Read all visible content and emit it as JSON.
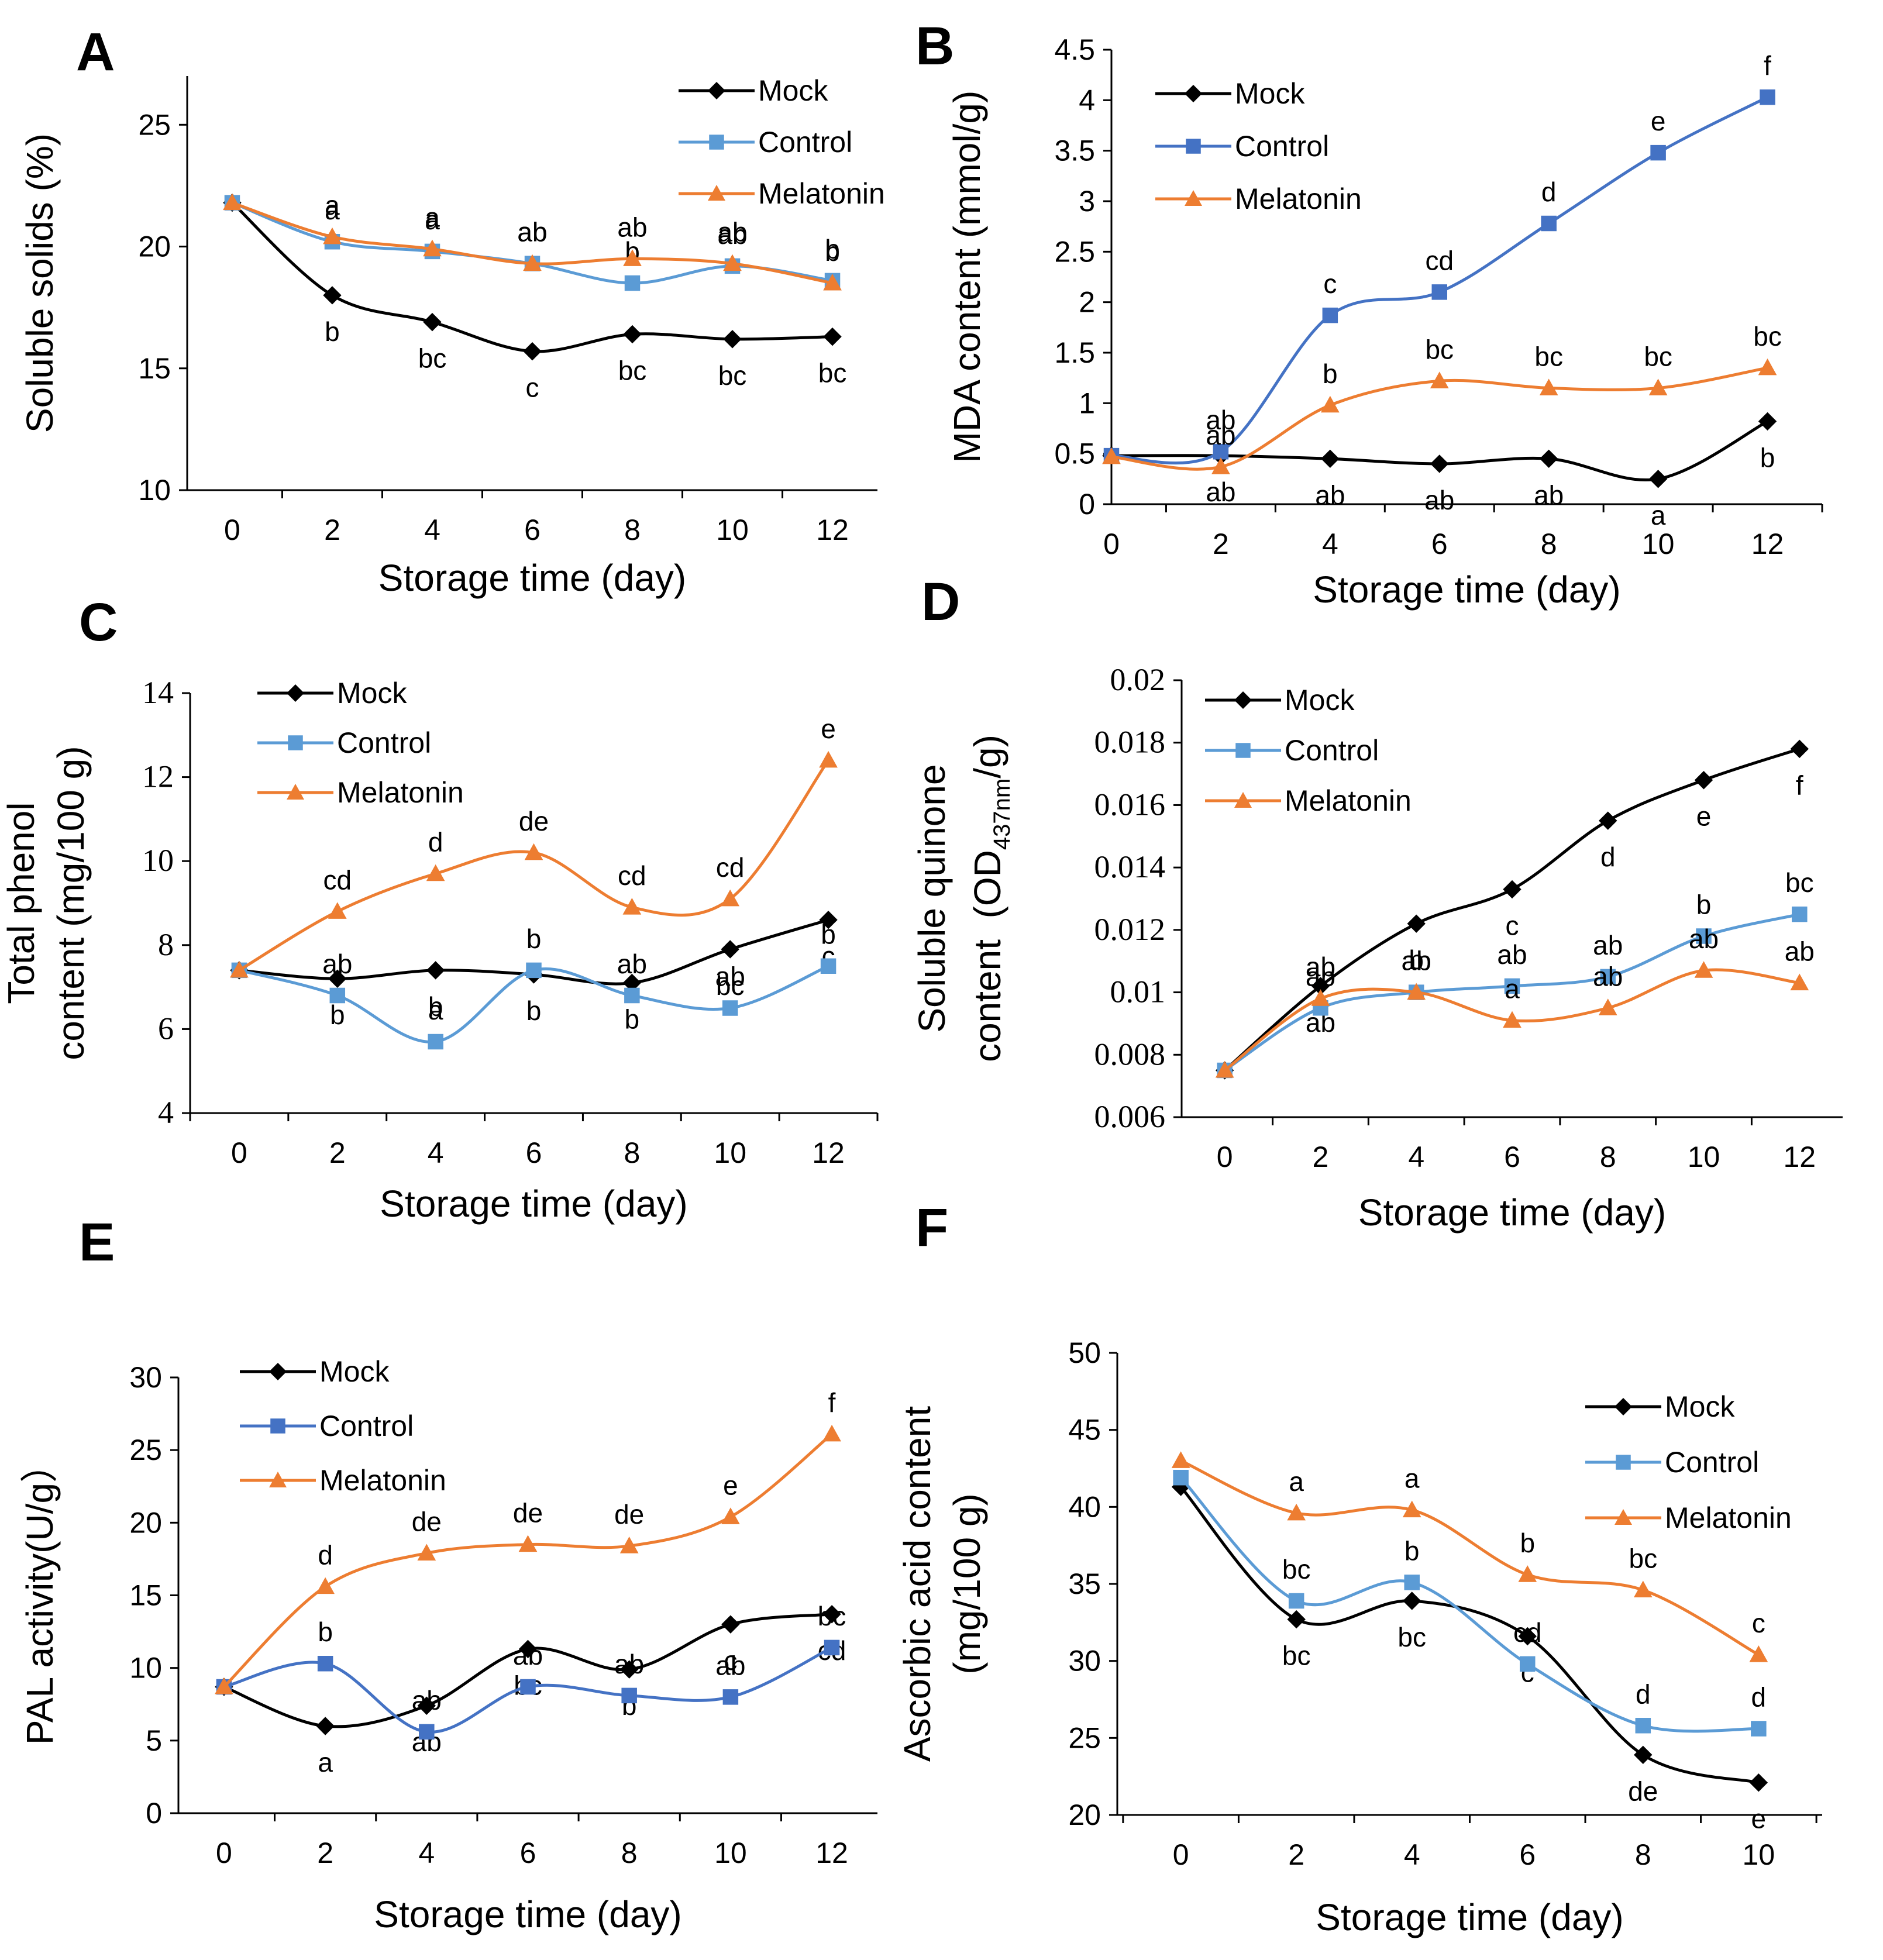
{
  "colors": {
    "mock": "#000000",
    "control_light": "#5b9bd5",
    "control_dark": "#4472c4",
    "melatonin": "#ed7d31"
  },
  "chart_data": [
    {
      "panel": "A",
      "type": "line",
      "title": "",
      "xlabel": "Storage time (day)",
      "ylabel": "Soluble solids (%)",
      "x": [
        0,
        2,
        4,
        6,
        8,
        10,
        12
      ],
      "x_tick_labels": [
        "0",
        "2",
        "4",
        "6",
        "8",
        "10",
        "12"
      ],
      "ylim": [
        10,
        27
      ],
      "y_ticks": [
        10,
        15,
        20,
        25
      ],
      "y_tick_labels": [
        "10",
        "15",
        "20",
        "25"
      ],
      "legend": [
        "Mock",
        "Control",
        "Melatonin"
      ],
      "series": [
        {
          "name": "Mock",
          "color_key": "mock",
          "marker": "diamond",
          "values": [
            21.8,
            18.0,
            16.9,
            15.7,
            16.4,
            16.2,
            16.3
          ],
          "labels": [
            "",
            "b",
            "bc",
            "c",
            "bc",
            "bc",
            "bc"
          ]
        },
        {
          "name": "Control",
          "color_key": "control_light",
          "marker": "square",
          "values": [
            21.8,
            20.2,
            19.8,
            19.3,
            18.5,
            19.2,
            18.6
          ],
          "labels": [
            "",
            "a",
            "a",
            "ab",
            "b",
            "ab",
            "b"
          ]
        },
        {
          "name": "Melatonin",
          "color_key": "melatonin",
          "marker": "triangle",
          "values": [
            21.8,
            20.4,
            19.9,
            19.3,
            19.5,
            19.3,
            18.5
          ],
          "labels": [
            "",
            "a",
            "a",
            "ab",
            "ab",
            "ab",
            "b"
          ]
        }
      ]
    },
    {
      "panel": "B",
      "type": "line",
      "title": "",
      "xlabel": "Storage time (day)",
      "ylabel": "MDA content (mmol/g)",
      "x": [
        0,
        2,
        4,
        6,
        8,
        10,
        12
      ],
      "x_tick_labels": [
        "0",
        "2",
        "4",
        "6",
        "8",
        "10",
        "12"
      ],
      "ylim": [
        0,
        4.5
      ],
      "y_ticks": [
        0,
        0.5,
        1,
        1.5,
        2,
        2.5,
        3,
        3.5,
        4,
        4.5
      ],
      "y_tick_labels": [
        "0",
        "0.5",
        "1",
        "1.5",
        "2",
        "2.5",
        "3",
        "3.5",
        "4",
        "4.5"
      ],
      "legend": [
        "Mock",
        "Control",
        "Melatonin"
      ],
      "series": [
        {
          "name": "Mock",
          "color_key": "mock",
          "marker": "diamond",
          "values": [
            0.48,
            0.48,
            0.45,
            0.4,
            0.45,
            0.25,
            0.82
          ],
          "labels": [
            "",
            "ab",
            "ab",
            "ab",
            "ab",
            "a",
            "b"
          ]
        },
        {
          "name": "Control",
          "color_key": "control_dark",
          "marker": "square",
          "values": [
            0.48,
            0.52,
            1.87,
            2.1,
            2.78,
            3.48,
            4.03
          ],
          "labels": [
            "",
            "ab",
            "c",
            "cd",
            "d",
            "e",
            "f"
          ]
        },
        {
          "name": "Melatonin",
          "color_key": "melatonin",
          "marker": "triangle",
          "values": [
            0.47,
            0.37,
            0.98,
            1.22,
            1.15,
            1.15,
            1.35
          ],
          "labels": [
            "",
            "ab",
            "b",
            "bc",
            "bc",
            "bc",
            "bc"
          ]
        }
      ]
    },
    {
      "panel": "C",
      "type": "line",
      "title": "",
      "xlabel": "Storage time (day)",
      "ylabel": "Total phenol content (mg/100 g)",
      "ylabel_lines": [
        "Total phenol",
        "content (mg/100 g)"
      ],
      "x": [
        0,
        2,
        4,
        6,
        8,
        10,
        12
      ],
      "x_tick_labels": [
        "0",
        "2",
        "4",
        "6",
        "8",
        "10",
        "12"
      ],
      "ylim": [
        4,
        14
      ],
      "y_ticks": [
        4,
        6,
        8,
        10,
        12,
        14
      ],
      "y_tick_labels": [
        "4",
        "6",
        "8",
        "10",
        "12",
        "14"
      ],
      "legend": [
        "Mock",
        "Control",
        "Melatonin"
      ],
      "series": [
        {
          "name": "Mock",
          "color_key": "mock",
          "marker": "diamond",
          "values": [
            7.4,
            7.2,
            7.4,
            7.3,
            7.1,
            7.9,
            8.6
          ],
          "labels": [
            "",
            "b",
            "b",
            "b",
            "b",
            "bc",
            "c"
          ]
        },
        {
          "name": "Control",
          "color_key": "control_light",
          "marker": "square",
          "values": [
            7.4,
            6.8,
            5.7,
            7.4,
            6.8,
            6.5,
            7.5
          ],
          "labels": [
            "",
            "ab",
            "a",
            "b",
            "ab",
            "ab",
            "b"
          ]
        },
        {
          "name": "Melatonin",
          "color_key": "melatonin",
          "marker": "triangle",
          "values": [
            7.4,
            8.8,
            9.7,
            10.2,
            8.9,
            9.1,
            12.4
          ],
          "labels": [
            "",
            "cd",
            "d",
            "de",
            "cd",
            "cd",
            "e"
          ]
        }
      ]
    },
    {
      "panel": "D",
      "type": "line",
      "title": "",
      "xlabel": "Storage time (day)",
      "ylabel": "Soluble quinone content (OD437nm/g)",
      "ylabel_line1": "Soluble quinone",
      "ylabel_line2_prefix": "content  (OD",
      "ylabel_line2_sub": "437nm",
      "ylabel_line2_suffix": "/g)",
      "x": [
        0,
        2,
        4,
        6,
        8,
        10,
        12
      ],
      "x_tick_labels": [
        "0",
        "2",
        "4",
        "6",
        "8",
        "10",
        "12"
      ],
      "ylim": [
        0.006,
        0.02
      ],
      "y_ticks": [
        0.006,
        0.008,
        0.01,
        0.012,
        0.014,
        0.016,
        0.018,
        0.02
      ],
      "y_tick_labels": [
        "0.006",
        "0.008",
        "0.01",
        "0.012",
        "0.014",
        "0.016",
        "0.018",
        "0.02"
      ],
      "legend": [
        "Mock",
        "Control",
        "Melatonin"
      ],
      "series": [
        {
          "name": "Mock",
          "color_key": "mock",
          "marker": "diamond",
          "values": [
            0.0075,
            0.0102,
            0.0122,
            0.0133,
            0.0155,
            0.0168,
            0.0178
          ],
          "labels": [
            "",
            "ab",
            "b",
            "c",
            "d",
            "e",
            "f"
          ]
        },
        {
          "name": "Control",
          "color_key": "control_light",
          "marker": "square",
          "values": [
            0.0075,
            0.0095,
            0.01,
            0.0102,
            0.0105,
            0.0118,
            0.0125
          ],
          "labels": [
            "",
            "ab",
            "ab",
            "ab",
            "ab",
            "b",
            "bc"
          ]
        },
        {
          "name": "Melatonin",
          "color_key": "melatonin",
          "marker": "triangle",
          "values": [
            0.0075,
            0.0098,
            0.01,
            0.0091,
            0.0095,
            0.0107,
            0.0103
          ],
          "labels": [
            "",
            "ab",
            "ab",
            "a",
            "ab",
            "ab",
            "ab"
          ]
        }
      ]
    },
    {
      "panel": "E",
      "type": "line",
      "title": "",
      "xlabel": "Storage time (day)",
      "ylabel": "PAL activity(U/g）",
      "x": [
        0,
        2,
        4,
        6,
        8,
        10,
        12
      ],
      "x_tick_labels": [
        "0",
        "2",
        "4",
        "6",
        "8",
        "10",
        "12"
      ],
      "ylim": [
        0,
        30
      ],
      "y_ticks": [
        0,
        5,
        10,
        15,
        20,
        25,
        30
      ],
      "y_tick_labels": [
        "0",
        "5",
        "10",
        "15",
        "20",
        "25",
        "30"
      ],
      "legend": [
        "Mock",
        "Control",
        "Melatonin"
      ],
      "series": [
        {
          "name": "Mock",
          "color_key": "mock",
          "marker": "diamond",
          "values": [
            8.7,
            6.0,
            7.4,
            11.3,
            9.9,
            13.0,
            13.7
          ],
          "labels": [
            "",
            "a",
            "ab",
            "bc",
            "b",
            "c",
            "cd"
          ]
        },
        {
          "name": "Control",
          "color_key": "control_dark",
          "marker": "square",
          "values": [
            8.7,
            10.3,
            5.6,
            8.7,
            8.1,
            8.0,
            11.4
          ],
          "labels": [
            "",
            "b",
            "ab",
            "ab",
            "ab",
            "ab",
            "bc"
          ]
        },
        {
          "name": "Melatonin",
          "color_key": "melatonin",
          "marker": "triangle",
          "values": [
            8.7,
            15.6,
            17.9,
            18.5,
            18.4,
            20.4,
            26.1
          ],
          "labels": [
            "",
            "d",
            "de",
            "de",
            "de",
            "e",
            "f"
          ]
        }
      ]
    },
    {
      "panel": "F",
      "type": "line",
      "title": "",
      "xlabel": "Storage time (day)",
      "ylabel": "Ascorbic acid content (mg/100 g)",
      "ylabel_lines": [
        "Ascorbic acid  content",
        "(mg/100 g)"
      ],
      "x": [
        0,
        2,
        4,
        6,
        8,
        10
      ],
      "x_tick_labels": [
        "0",
        "2",
        "4",
        "6",
        "8",
        "10"
      ],
      "ylim": [
        20,
        50
      ],
      "y_ticks": [
        20,
        25,
        30,
        35,
        40,
        45,
        50
      ],
      "y_tick_labels": [
        "20",
        "25",
        "30",
        "35",
        "40",
        "45",
        "50"
      ],
      "legend": [
        "Mock",
        "Control",
        "Melatonin"
      ],
      "series": [
        {
          "name": "Mock",
          "color_key": "mock",
          "marker": "diamond",
          "values": [
            41.3,
            32.7,
            33.9,
            31.6,
            23.9,
            22.1
          ],
          "labels": [
            "",
            "bc",
            "bc",
            "c",
            "de",
            "e"
          ]
        },
        {
          "name": "Control",
          "color_key": "control_light",
          "marker": "square",
          "values": [
            41.9,
            33.9,
            35.1,
            29.8,
            25.8,
            25.6
          ],
          "labels": [
            "",
            "bc",
            "b",
            "cd",
            "d",
            "d"
          ]
        },
        {
          "name": "Melatonin",
          "color_key": "melatonin",
          "marker": "triangle",
          "values": [
            43.0,
            39.6,
            39.8,
            35.6,
            34.6,
            30.4
          ],
          "labels": [
            "",
            "a",
            "a",
            "b",
            "bc",
            "c"
          ]
        }
      ]
    }
  ]
}
